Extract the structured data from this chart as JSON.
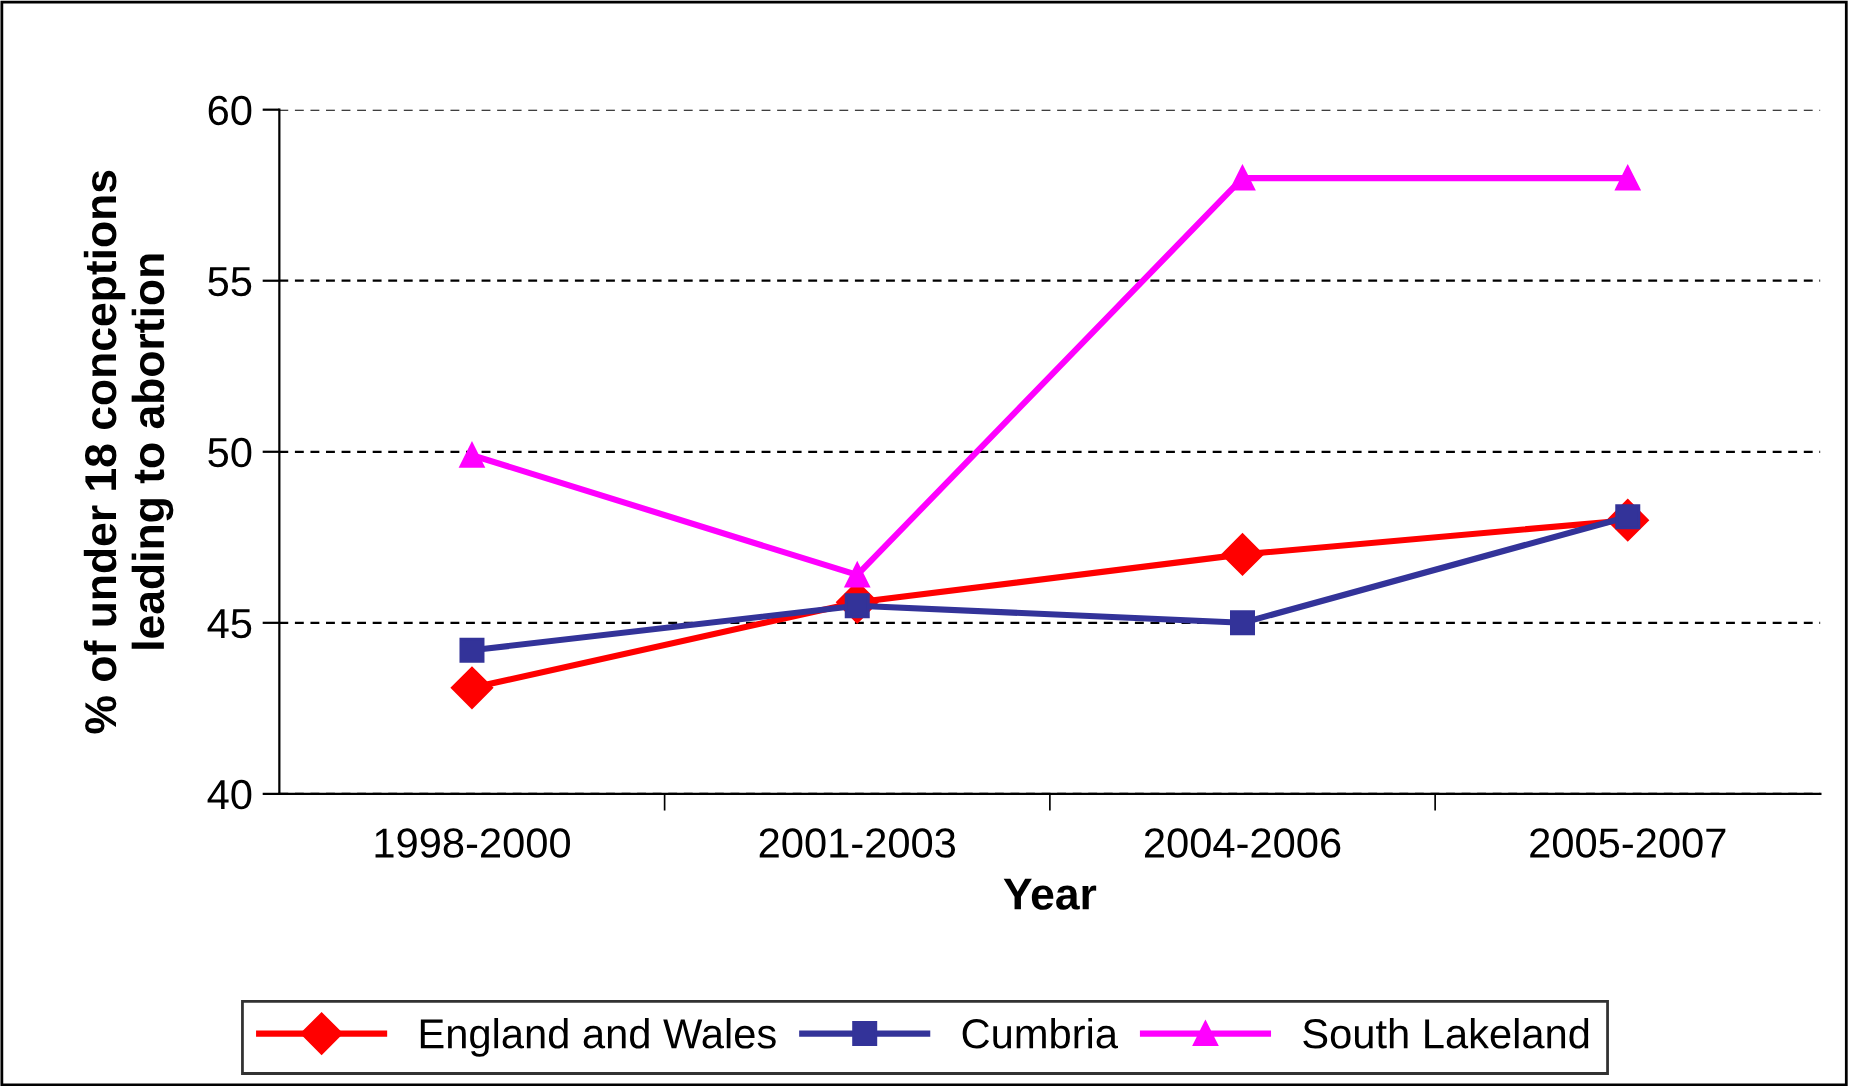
{
  "chart_data": {
    "type": "line",
    "xlabel": "Year",
    "ylabel": "% of under 18 conceptions\nleading to abortion",
    "categories": [
      "1998-2000",
      "2001-2003",
      "2004-2006",
      "2005-2007"
    ],
    "series": [
      {
        "name": "England and Wales",
        "color": "#ff0000",
        "marker": "diamond",
        "values": [
          43.1,
          45.6,
          47.0,
          48.0
        ]
      },
      {
        "name": "Cumbria",
        "color": "#333399",
        "marker": "square",
        "values": [
          44.2,
          45.5,
          45.0,
          48.1
        ]
      },
      {
        "name": "South Lakeland",
        "color": "#ff00ff",
        "marker": "triangle",
        "values": [
          49.9,
          46.4,
          58.0,
          58.0
        ]
      }
    ],
    "ylim": [
      40,
      60
    ],
    "yticks": [
      40,
      45,
      50,
      55,
      60
    ],
    "grid": "y",
    "legend": "bottom",
    "line_style": "solid"
  }
}
